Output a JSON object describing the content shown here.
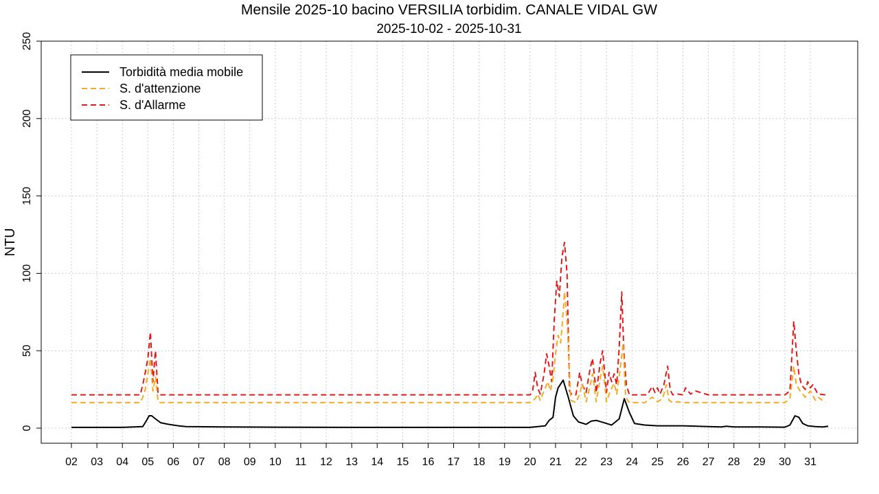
{
  "chart_data": {
    "type": "line",
    "title": "Mensile 2025-10 bacino VERSILIA torbidim. CANALE VIDAL GW",
    "subtitle": "2025-10-02 - 2025-10-31",
    "xlabel": "",
    "ylabel": "NTU",
    "ylim": [
      0,
      250
    ],
    "xlim": [
      0.6,
      32.7
    ],
    "yticks": [
      0,
      50,
      100,
      150,
      200,
      250
    ],
    "xtick_positions": [
      2,
      3,
      4,
      5,
      6,
      7,
      8,
      9,
      10,
      11,
      12,
      13,
      14,
      15,
      16,
      17,
      18,
      19,
      20,
      21,
      22,
      23,
      24,
      25,
      26,
      27,
      28,
      29,
      30,
      31
    ],
    "xtick_labels": [
      "02",
      "03",
      "04",
      "05",
      "06",
      "07",
      "08",
      "09",
      "10",
      "11",
      "12",
      "13",
      "14",
      "15",
      "16",
      "17",
      "18",
      "19",
      "20",
      "21",
      "22",
      "23",
      "24",
      "25",
      "26",
      "27",
      "28",
      "29",
      "30",
      "31"
    ],
    "grid": true,
    "legend_position": "top-left",
    "series": [
      {
        "name": "Torbidità media mobile",
        "color": "#000000",
        "style": "solid",
        "x": [
          2.0,
          3.0,
          4.0,
          4.8,
          4.95,
          5.05,
          5.15,
          5.3,
          5.5,
          5.8,
          6.2,
          6.5,
          8,
          10,
          14,
          18,
          20,
          20.6,
          20.75,
          20.9,
          21.0,
          21.1,
          21.3,
          21.5,
          21.7,
          21.9,
          22.2,
          22.4,
          22.6,
          22.9,
          23.2,
          23.5,
          23.7,
          23.9,
          24.1,
          24.5,
          25,
          26,
          27,
          27.5,
          27.7,
          28,
          29,
          30,
          30.2,
          30.4,
          30.55,
          30.7,
          30.9,
          31.2,
          31.5,
          31.7
        ],
        "y": [
          0.5,
          0.5,
          0.5,
          1.0,
          5,
          8,
          8,
          6,
          3.5,
          2.5,
          1.5,
          1.0,
          0.8,
          0.6,
          0.5,
          0.5,
          0.5,
          1.5,
          5,
          7,
          20,
          26,
          31,
          20,
          8,
          4,
          2.5,
          4.5,
          5,
          3.5,
          2,
          6,
          19,
          10,
          3,
          2,
          1.5,
          1.5,
          1.0,
          0.8,
          1.2,
          0.8,
          0.8,
          0.6,
          2,
          8,
          7,
          3,
          1.5,
          1,
          0.8,
          1.2
        ]
      },
      {
        "name": "S. d'attenzione",
        "color": "#F4A923",
        "style": "dashed",
        "x": [
          2.0,
          4.7,
          4.8,
          4.9,
          5.0,
          5.1,
          5.2,
          5.3,
          5.4,
          5.5,
          20.0,
          20.2,
          20.3,
          20.4,
          20.6,
          20.7,
          20.8,
          20.9,
          21.0,
          21.1,
          21.2,
          21.3,
          21.35,
          21.45,
          21.6,
          21.8,
          21.95,
          22.05,
          22.2,
          22.35,
          22.45,
          22.6,
          22.75,
          22.85,
          23.0,
          23.15,
          23.3,
          23.4,
          23.55,
          23.65,
          23.75,
          23.9,
          24.5,
          24.8,
          25.0,
          25.2,
          25.35,
          25.45,
          25.6,
          25.8,
          26.0,
          26.3,
          30.0,
          30.2,
          30.35,
          30.45,
          30.6,
          30.8,
          31.0,
          31.2,
          31.3,
          31.6
        ],
        "y": [
          16.5,
          16.5,
          20,
          25,
          35,
          45,
          24,
          33,
          17,
          16.5,
          16.5,
          19,
          22,
          18,
          26,
          30,
          24,
          32,
          48,
          60,
          55,
          75,
          88,
          70,
          18,
          16.5,
          22,
          29,
          17,
          27,
          35,
          17,
          32,
          40,
          17,
          24,
          29,
          22,
          40,
          55,
          20,
          16.5,
          16.5,
          20,
          17,
          19,
          28,
          18,
          16.5,
          17,
          16.5,
          16.5,
          16.5,
          19,
          40,
          28,
          24,
          20,
          24,
          18,
          20,
          16.5
        ]
      },
      {
        "name": "S. d'Allarme",
        "color": "#E01818",
        "style": "dashed",
        "x": [
          2.0,
          4.7,
          4.8,
          4.9,
          5.0,
          5.1,
          5.2,
          5.3,
          5.4,
          5.5,
          20.0,
          20.1,
          20.2,
          20.3,
          20.4,
          20.55,
          20.65,
          20.75,
          20.85,
          20.95,
          21.05,
          21.15,
          21.25,
          21.35,
          21.45,
          21.55,
          21.65,
          21.8,
          21.95,
          22.05,
          22.2,
          22.35,
          22.45,
          22.6,
          22.75,
          22.85,
          23.0,
          23.1,
          23.2,
          23.3,
          23.4,
          23.5,
          23.6,
          23.68,
          23.78,
          23.9,
          24.6,
          24.8,
          24.9,
          25.0,
          25.1,
          25.25,
          25.4,
          25.5,
          25.6,
          25.8,
          26.0,
          26.1,
          26.3,
          26.5,
          27.0,
          30.0,
          30.2,
          30.35,
          30.45,
          30.55,
          30.65,
          30.8,
          30.9,
          31.0,
          31.1,
          31.2,
          31.3,
          31.6
        ],
        "y": [
          21.5,
          21.5,
          28,
          36,
          45,
          62,
          30,
          50,
          22,
          21.5,
          21.5,
          24,
          36,
          26,
          22,
          35,
          48,
          40,
          30,
          70,
          95,
          85,
          110,
          120,
          100,
          24,
          21.5,
          21.5,
          36,
          28,
          23,
          38,
          45,
          23,
          42,
          50,
          23,
          36,
          30,
          35,
          28,
          52,
          88,
          50,
          28,
          21.5,
          21.5,
          27,
          23,
          26,
          22,
          28,
          40,
          25,
          21.5,
          22,
          21.5,
          26,
          22,
          24,
          21.5,
          21.5,
          24,
          69,
          50,
          35,
          28,
          25,
          30,
          26,
          28,
          25,
          22,
          21.5
        ]
      }
    ]
  },
  "colors": {
    "grid": "#cccccc",
    "axis": "#000000",
    "background": "#ffffff"
  }
}
